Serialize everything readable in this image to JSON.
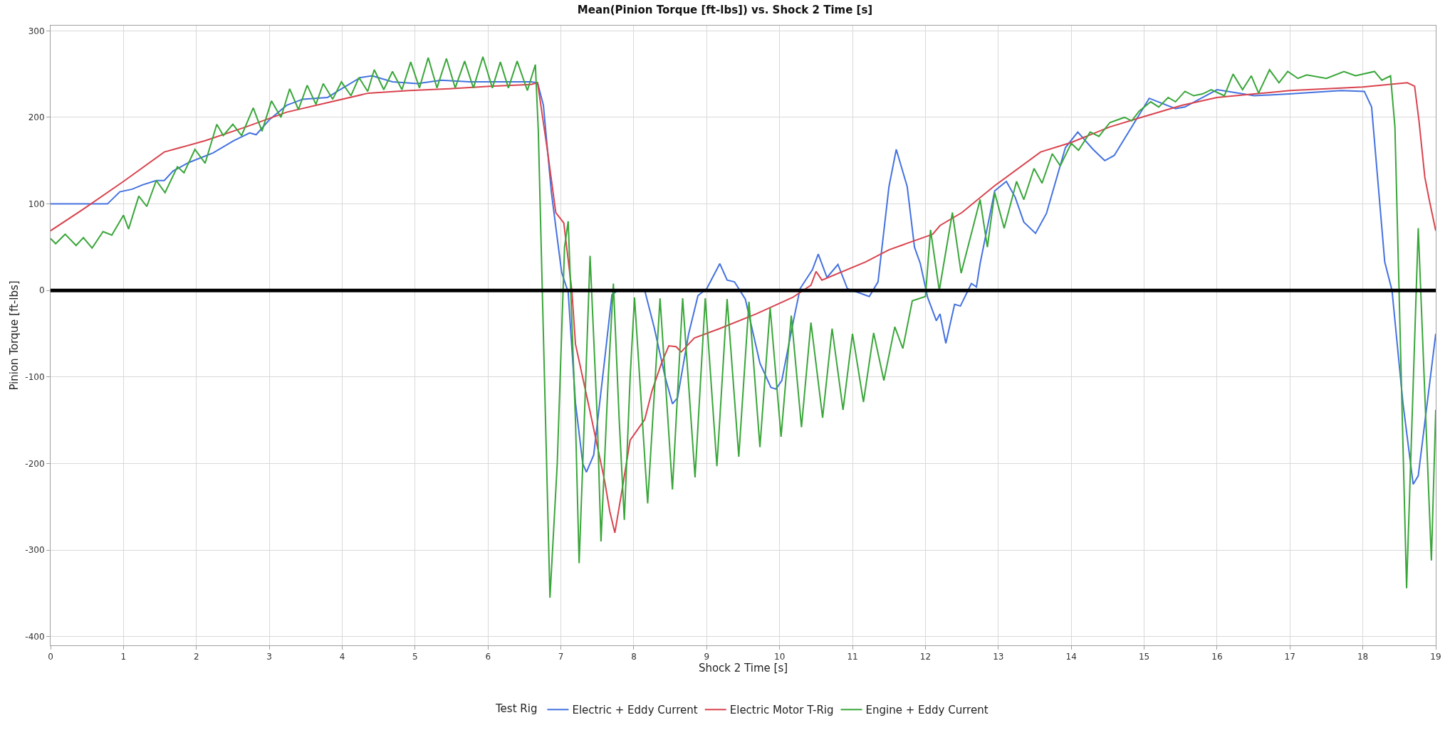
{
  "chart_data": {
    "type": "line",
    "title": "Mean(Pinion Torque [ft-lbs]) vs. Shock 2 Time [s]",
    "xlabel": "Shock 2 Time [s]",
    "ylabel": "Pinion Torque [ft-lbs]",
    "legend_title": "Test Rig",
    "legend": "bottom",
    "grid": true,
    "marker": "none",
    "line_style": "solid",
    "xlim": [
      0,
      19
    ],
    "ylim": [
      -410,
      306
    ],
    "xticks": [
      0,
      1,
      2,
      3,
      4,
      5,
      6,
      7,
      8,
      9,
      10,
      11,
      12,
      13,
      14,
      15,
      16,
      17,
      18,
      19
    ],
    "yticks": [
      -400,
      -300,
      -200,
      -100,
      0,
      100,
      200,
      300
    ],
    "ref_lines": [
      {
        "axis": "y",
        "value": 0,
        "label": null,
        "color": "#000000",
        "line_style": "solid"
      }
    ],
    "series": [
      {
        "name": "Electric + Eddy Current",
        "color": "#4472e0",
        "x": [
          0,
          0.78,
          0.95,
          1.12,
          1.26,
          1.45,
          1.56,
          1.68,
          1.9,
          2.23,
          2.51,
          2.73,
          2.82,
          3.01,
          3.24,
          3.46,
          3.8,
          3.97,
          4.25,
          4.41,
          4.69,
          5.03,
          5.36,
          5.75,
          6.59,
          6.68,
          6.76,
          6.87,
          7.01,
          7.1,
          7.2,
          7.3,
          7.35,
          7.45,
          7.6,
          7.7,
          7.78,
          8.15,
          8.28,
          8.43,
          8.53,
          8.6,
          8.75,
          8.88,
          9.0,
          9.18,
          9.28,
          9.38,
          9.53,
          9.73,
          9.88,
          9.95,
          10.03,
          10.18,
          10.28,
          10.45,
          10.53,
          10.65,
          10.8,
          10.93,
          11.23,
          11.35,
          11.5,
          11.6,
          11.75,
          11.85,
          11.93,
          12.03,
          12.15,
          12.2,
          12.28,
          12.4,
          12.48,
          12.63,
          12.7,
          12.75,
          12.95,
          13.11,
          13.23,
          13.35,
          13.51,
          13.66,
          13.92,
          14.09,
          14.3,
          14.46,
          14.59,
          15.07,
          15.43,
          15.56,
          16.0,
          16.51,
          16.99,
          17.7,
          18.02,
          18.12,
          18.3,
          18.4,
          18.55,
          18.69,
          18.76,
          19.0
        ],
        "values": [
          100,
          100,
          114,
          117,
          122,
          127,
          127,
          138,
          148,
          159,
          173,
          182,
          180,
          198,
          214,
          221,
          223,
          232,
          246,
          248,
          241,
          239,
          243,
          241,
          241,
          240,
          214,
          113,
          21,
          -2,
          -130,
          -200,
          -210,
          -190,
          -80,
          -5,
          0,
          0,
          -43,
          -100,
          -131,
          -124,
          -51,
          -6,
          2,
          31,
          12,
          10,
          -10,
          -84,
          -112,
          -114,
          -104,
          -39,
          2,
          24,
          42,
          15,
          30,
          2,
          -7,
          10,
          120,
          163,
          120,
          50,
          31,
          -8,
          -35,
          -27,
          -61,
          -16,
          -18,
          8,
          4,
          31,
          115,
          126,
          108,
          79,
          66,
          89,
          165,
          183,
          163,
          150,
          156,
          222,
          210,
          212,
          232,
          225,
          227,
          231,
          230,
          212,
          33,
          0,
          -130,
          -224,
          -214,
          -50
        ]
      },
      {
        "name": "Electric Motor T-Rig",
        "color": "#d9434e",
        "x": [
          0,
          0.45,
          1.0,
          1.56,
          2.12,
          2.68,
          3.24,
          3.8,
          4.36,
          4.92,
          5.47,
          6.03,
          6.59,
          6.68,
          6.82,
          6.93,
          7.04,
          7.15,
          7.2,
          7.4,
          7.6,
          7.67,
          7.74,
          7.83,
          7.95,
          8.05,
          8.15,
          8.25,
          8.38,
          8.48,
          8.58,
          8.65,
          8.83,
          9.18,
          9.68,
          10.18,
          10.43,
          10.5,
          10.58,
          11.18,
          11.5,
          12.0,
          12.1,
          12.2,
          12.5,
          12.95,
          13.58,
          14.0,
          14.53,
          15.0,
          15.52,
          16.0,
          16.51,
          17.0,
          18.0,
          18.61,
          18.71,
          18.77,
          18.85,
          18.91,
          19.0
        ],
        "values": [
          69,
          94,
          126,
          160,
          173,
          189,
          206,
          217,
          228,
          231,
          233,
          236,
          238,
          240,
          159,
          90,
          78,
          0,
          -62,
          -140,
          -220,
          -255,
          -280,
          -235,
          -173,
          -161,
          -149,
          -116,
          -84,
          -64,
          -65,
          -71,
          -55,
          -44,
          -27,
          -8,
          6,
          22,
          12,
          33,
          47,
          62,
          65,
          75,
          90,
          121,
          160,
          171,
          189,
          201,
          214,
          223,
          227,
          231,
          235,
          240,
          236,
          196,
          131,
          105,
          69
        ]
      },
      {
        "name": "Engine + Eddy Current",
        "color": "#3aa63a",
        "x": [
          0,
          0.07,
          0.2,
          0.35,
          0.45,
          0.57,
          0.72,
          0.84,
          1.0,
          1.07,
          1.21,
          1.32,
          1.45,
          1.57,
          1.74,
          1.83,
          1.98,
          2.12,
          2.28,
          2.37,
          2.5,
          2.62,
          2.78,
          2.9,
          3.03,
          3.16,
          3.28,
          3.4,
          3.52,
          3.64,
          3.74,
          3.87,
          3.99,
          4.12,
          4.23,
          4.35,
          4.44,
          4.57,
          4.69,
          4.82,
          4.94,
          5.06,
          5.18,
          5.3,
          5.43,
          5.55,
          5.68,
          5.8,
          5.93,
          6.06,
          6.17,
          6.28,
          6.4,
          6.54,
          6.65,
          6.69,
          6.85,
          6.95,
          7.05,
          7.1,
          7.2,
          7.25,
          7.3,
          7.4,
          7.5,
          7.55,
          7.65,
          7.72,
          7.8,
          7.87,
          7.95,
          8.01,
          8.19,
          8.36,
          8.53,
          8.67,
          8.84,
          8.98,
          9.14,
          9.28,
          9.44,
          9.58,
          9.73,
          9.87,
          10.02,
          10.16,
          10.3,
          10.43,
          10.59,
          10.72,
          10.87,
          11.0,
          11.15,
          11.29,
          11.43,
          11.58,
          11.69,
          11.82,
          12.0,
          12.07,
          12.19,
          12.37,
          12.49,
          12.75,
          12.85,
          12.95,
          13.08,
          13.25,
          13.35,
          13.49,
          13.6,
          13.74,
          13.85,
          14.0,
          14.1,
          14.26,
          14.38,
          14.53,
          14.73,
          14.83,
          14.93,
          15.09,
          15.2,
          15.33,
          15.43,
          15.56,
          15.68,
          15.8,
          15.92,
          16.1,
          16.22,
          16.35,
          16.47,
          16.57,
          16.72,
          16.85,
          16.97,
          17.11,
          17.23,
          17.5,
          17.74,
          17.9,
          18.16,
          18.26,
          18.38,
          18.44,
          18.6,
          18.76,
          18.94,
          19.0
        ],
        "values": [
          60,
          54,
          65,
          52,
          61,
          49,
          68,
          64,
          87,
          71,
          109,
          97,
          127,
          113,
          143,
          136,
          163,
          147,
          192,
          179,
          192,
          179,
          211,
          184,
          219,
          200,
          233,
          209,
          237,
          215,
          239,
          221,
          241,
          225,
          246,
          230,
          255,
          232,
          253,
          232,
          264,
          234,
          269,
          234,
          268,
          234,
          265,
          234,
          270,
          234,
          264,
          234,
          265,
          231,
          261,
          185,
          -355,
          -200,
          50,
          80,
          -150,
          -315,
          -200,
          40,
          -150,
          -290,
          -100,
          8,
          -150,
          -265,
          -100,
          -8,
          -246,
          -9,
          -230,
          -9,
          -216,
          -9,
          -203,
          -10,
          -192,
          -13,
          -181,
          -20,
          -169,
          -29,
          -158,
          -37,
          -147,
          -44,
          -138,
          -50,
          -129,
          -49,
          -104,
          -42,
          -67,
          -12,
          -7,
          70,
          0,
          90,
          20,
          105,
          50,
          113,
          72,
          126,
          105,
          141,
          124,
          158,
          144,
          170,
          162,
          183,
          178,
          194,
          200,
          196,
          207,
          218,
          212,
          223,
          218,
          230,
          225,
          227,
          232,
          225,
          250,
          232,
          248,
          228,
          255,
          240,
          253,
          245,
          249,
          245,
          253,
          248,
          253,
          243,
          248,
          189,
          -344,
          72,
          -312,
          -138
        ]
      }
    ]
  }
}
